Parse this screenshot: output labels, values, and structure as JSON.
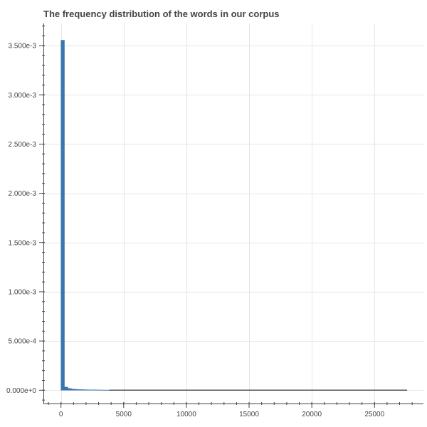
{
  "chart_data": {
    "type": "bar",
    "title": "The frequency distribution of the words in our corpus",
    "xlabel": "",
    "ylabel": "",
    "xlim": [
      -1400,
      28900
    ],
    "ylim": [
      -0.000135,
      0.003725
    ],
    "grid": true,
    "legend": "none",
    "x_ticks": [
      0,
      5000,
      10000,
      15000,
      20000,
      25000
    ],
    "x_tick_labels": [
      "0",
      "5000",
      "10000",
      "15000",
      "20000",
      "25000"
    ],
    "y_ticks": [
      0,
      0.0005,
      0.001,
      0.0015,
      0.002,
      0.0025,
      0.003,
      0.0035
    ],
    "y_tick_labels": [
      "0.000e+0",
      "5.000e-4",
      "1.000e-3",
      "1.500e-3",
      "2.000e-3",
      "2.500e-3",
      "3.000e-3",
      "3.500e-3"
    ],
    "bin_width": 276,
    "bin_starts": [
      0,
      276,
      552,
      828,
      1104,
      1380,
      1656,
      1932,
      2208,
      2484,
      2760,
      3036,
      3312,
      3588
    ],
    "values": [
      0.003555,
      3.2e-05,
      1.8e-05,
      1.2e-05,
      9e-06,
      7e-06,
      6e-06,
      5e-06,
      4e-06,
      4e-06,
      3e-06,
      3e-06,
      2e-06,
      2e-06
    ],
    "tail_range": [
      3864,
      27600
    ],
    "tail_value": 5e-07,
    "colors": {
      "bar_fill": "#3a76ad",
      "bar_stroke": "#3a76ad",
      "tail": "#555555",
      "grid": "#e5e5e5",
      "axis": "#444444"
    }
  }
}
